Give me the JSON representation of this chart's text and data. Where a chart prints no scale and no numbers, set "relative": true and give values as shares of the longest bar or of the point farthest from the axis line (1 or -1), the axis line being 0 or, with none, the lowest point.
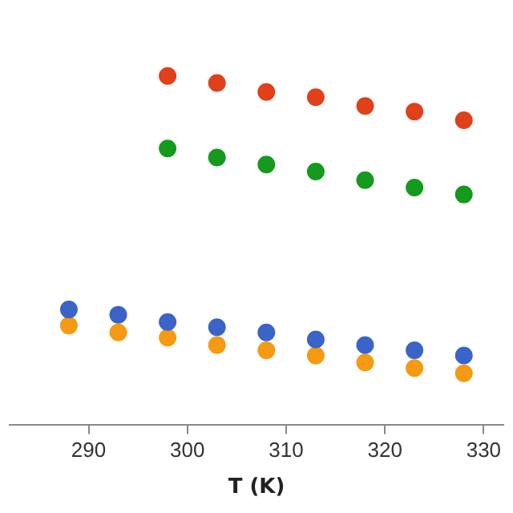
{
  "chart_data": {
    "type": "scatter",
    "xlabel": "T (K)",
    "relative": true,
    "xlim": [
      282,
      332
    ],
    "xticks": [
      290,
      300,
      310,
      320,
      330
    ],
    "grid": false,
    "legend": false,
    "marker": "circle",
    "series": [
      {
        "color": "#e0401a",
        "x": [
          298,
          303,
          308,
          313,
          318,
          323,
          328
        ],
        "values": [
          1,
          0.98,
          0.954,
          0.939,
          0.914,
          0.898,
          0.873
        ]
      },
      {
        "color": "#159a1e",
        "x": [
          298,
          303,
          308,
          313,
          318,
          323,
          328
        ],
        "values": [
          0.792,
          0.766,
          0.746,
          0.726,
          0.701,
          0.68,
          0.66
        ]
      },
      {
        "color": "#3a64c8",
        "x": [
          288,
          293,
          298,
          303,
          308,
          313,
          318,
          323,
          328
        ],
        "values": [
          0.33,
          0.315,
          0.294,
          0.279,
          0.264,
          0.244,
          0.228,
          0.213,
          0.198
        ]
      },
      {
        "color": "#f59a12",
        "x": [
          288,
          293,
          298,
          303,
          308,
          313,
          318,
          323,
          328
        ],
        "values": [
          0.284,
          0.264,
          0.249,
          0.228,
          0.213,
          0.198,
          0.178,
          0.162,
          0.147
        ]
      }
    ]
  }
}
